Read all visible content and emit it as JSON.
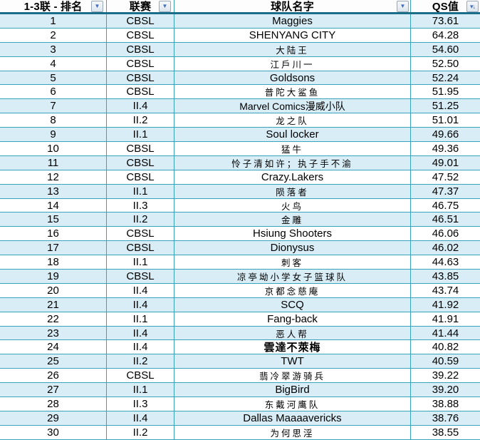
{
  "table": {
    "columns": [
      {
        "label": "1-3联 - 排名",
        "icon": "filter-dropdown"
      },
      {
        "label": "联赛",
        "icon": "filter-dropdown"
      },
      {
        "label": "球队名字",
        "icon": "filter-dropdown"
      },
      {
        "label": "QS值",
        "icon": "filter-sort-descending"
      }
    ],
    "rows": [
      {
        "rank": "1",
        "league": "CBSL",
        "team": "Maggies",
        "qs": "73.61",
        "team_font": "latin"
      },
      {
        "rank": "2",
        "league": "CBSL",
        "team": "SHENYANG CITY",
        "qs": "64.28",
        "team_font": "latin"
      },
      {
        "rank": "3",
        "league": "CBSL",
        "team": "大陆王",
        "qs": "54.60",
        "team_font": "kai"
      },
      {
        "rank": "4",
        "league": "CBSL",
        "team": "江戶川一",
        "qs": "52.50",
        "team_font": "kai"
      },
      {
        "rank": "5",
        "league": "CBSL",
        "team": "Goldsons",
        "qs": "52.24",
        "team_font": "latin"
      },
      {
        "rank": "6",
        "league": "CBSL",
        "team": "普陀大鲨鱼",
        "qs": "51.95",
        "team_font": "kai"
      },
      {
        "rank": "7",
        "league": "II.4",
        "team": "Marvel Comics漫威小队",
        "qs": "51.25",
        "team_font": "mixed"
      },
      {
        "rank": "8",
        "league": "II.2",
        "team": "龙之队",
        "qs": "51.01",
        "team_font": "kai"
      },
      {
        "rank": "9",
        "league": "II.1",
        "team": "Soul locker",
        "qs": "49.66",
        "team_font": "latin"
      },
      {
        "rank": "10",
        "league": "CBSL",
        "team": "猛牛",
        "qs": "49.36",
        "team_font": "kai"
      },
      {
        "rank": "11",
        "league": "CBSL",
        "team": "怜子清如许；执子手不渝",
        "qs": "49.01",
        "team_font": "kai"
      },
      {
        "rank": "12",
        "league": "CBSL",
        "team": "Crazy.Lakers",
        "qs": "47.52",
        "team_font": "latin"
      },
      {
        "rank": "13",
        "league": "II.1",
        "team": "陨落者",
        "qs": "47.37",
        "team_font": "kai"
      },
      {
        "rank": "14",
        "league": "II.3",
        "team": "火鸟",
        "qs": "46.75",
        "team_font": "kai"
      },
      {
        "rank": "15",
        "league": "II.2",
        "team": "金雕",
        "qs": "46.51",
        "team_font": "kai"
      },
      {
        "rank": "16",
        "league": "CBSL",
        "team": "Hsiung Shooters",
        "qs": "46.06",
        "team_font": "latin"
      },
      {
        "rank": "17",
        "league": "CBSL",
        "team": "Dionysus",
        "qs": "46.02",
        "team_font": "latin"
      },
      {
        "rank": "18",
        "league": "II.1",
        "team": "刺客",
        "qs": "44.63",
        "team_font": "kai"
      },
      {
        "rank": "19",
        "league": "CBSL",
        "team": "凉亭坳小学女子篮球队",
        "qs": "43.85",
        "team_font": "kai"
      },
      {
        "rank": "20",
        "league": "II.4",
        "team": "京都念慈庵",
        "qs": "43.74",
        "team_font": "kai"
      },
      {
        "rank": "21",
        "league": "II.4",
        "team": "SCQ",
        "qs": "41.92",
        "team_font": "latin"
      },
      {
        "rank": "22",
        "league": "II.1",
        "team": "Fang-back",
        "qs": "41.91",
        "team_font": "latin"
      },
      {
        "rank": "23",
        "league": "II.4",
        "team": "恶人帮",
        "qs": "41.44",
        "team_font": "kai"
      },
      {
        "rank": "24",
        "league": "II.4",
        "team": "雲達不萊梅",
        "qs": "40.82",
        "team_font": "kai-bold"
      },
      {
        "rank": "25",
        "league": "II.2",
        "team": "TWT",
        "qs": "40.59",
        "team_font": "latin"
      },
      {
        "rank": "26",
        "league": "CBSL",
        "team": "翡冷翠游骑兵",
        "qs": "39.22",
        "team_font": "kai"
      },
      {
        "rank": "27",
        "league": "II.1",
        "team": "BigBird",
        "qs": "39.20",
        "team_font": "latin"
      },
      {
        "rank": "28",
        "league": "II.3",
        "team": "东戴河鹰队",
        "qs": "38.88",
        "team_font": "kai"
      },
      {
        "rank": "29",
        "league": "II.4",
        "team": "Dallas Maaaavericks",
        "qs": "38.76",
        "team_font": "latin"
      },
      {
        "rank": "30",
        "league": "II.2",
        "team": "为何思淫",
        "qs": "38.55",
        "team_font": "kai"
      }
    ]
  },
  "icons": {
    "filter_dropdown": "▼",
    "sort_descending": "▾↓"
  },
  "colors": {
    "grid": "#3aa3bc",
    "row_stripe": "#d9edf6",
    "header_underline": "#1b6e8a",
    "dropdown_arrow": "#3d6cc0"
  }
}
